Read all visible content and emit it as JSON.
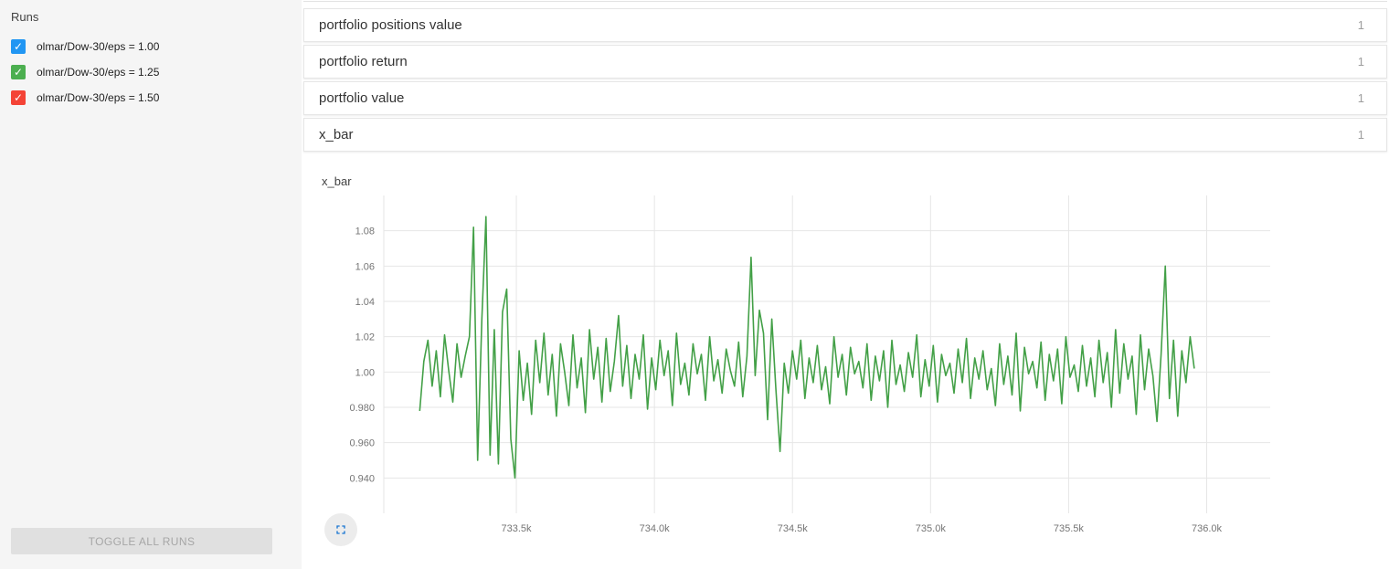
{
  "sidebar": {
    "title": "Runs",
    "runs": [
      {
        "label": "olmar/Dow-30/eps = 1.00",
        "color": "#2196f3",
        "checked": true
      },
      {
        "label": "olmar/Dow-30/eps = 1.25",
        "color": "#4caf50",
        "checked": true
      },
      {
        "label": "olmar/Dow-30/eps = 1.50",
        "color": "#f44336",
        "checked": true
      }
    ],
    "toggle_all_label": "TOGGLE ALL RUNS"
  },
  "panels": [
    {
      "label": "portfolio positions value",
      "count": "1",
      "expanded": false
    },
    {
      "label": "portfolio return",
      "count": "1",
      "expanded": false
    },
    {
      "label": "portfolio value",
      "count": "1",
      "expanded": false
    },
    {
      "label": "x_bar",
      "count": "1",
      "expanded": true
    }
  ],
  "expanded_chart": {
    "title": "x_bar"
  },
  "accent": {
    "expand_icon_color": "#1976d2"
  },
  "chart_data": {
    "type": "line",
    "title": "x_bar",
    "xlabel": "",
    "ylabel": "",
    "grid": true,
    "legend": "none",
    "xlim": [
      733020,
      736230
    ],
    "ylim": [
      0.92,
      1.1
    ],
    "x_ticks": [
      {
        "value": 733500,
        "label": "733.5k"
      },
      {
        "value": 734000,
        "label": "734.0k"
      },
      {
        "value": 734500,
        "label": "734.5k"
      },
      {
        "value": 735000,
        "label": "735.0k"
      },
      {
        "value": 735500,
        "label": "735.5k"
      },
      {
        "value": 736000,
        "label": "736.0k"
      }
    ],
    "y_ticks": [
      {
        "value": 0.94,
        "label": "0.940"
      },
      {
        "value": 0.96,
        "label": "0.960"
      },
      {
        "value": 0.98,
        "label": "0.980"
      },
      {
        "value": 1.0,
        "label": "1.00"
      },
      {
        "value": 1.02,
        "label": "1.02"
      },
      {
        "value": 1.04,
        "label": "1.04"
      },
      {
        "value": 1.06,
        "label": "1.06"
      },
      {
        "value": 1.08,
        "label": "1.08"
      }
    ],
    "series": [
      {
        "name": "olmar/Dow-30/eps = 1.25",
        "color": "#43a047",
        "x_start": 733150,
        "x_step": 15,
        "values": [
          0.978,
          1.006,
          1.018,
          0.992,
          1.012,
          0.986,
          1.021,
          1.001,
          0.983,
          1.016,
          0.997,
          1.009,
          1.02,
          1.082,
          0.95,
          1.03,
          1.088,
          0.953,
          1.024,
          0.948,
          1.034,
          1.047,
          0.962,
          0.94,
          1.012,
          0.984,
          1.005,
          0.976,
          1.018,
          0.994,
          1.022,
          0.987,
          1.01,
          0.975,
          1.016,
          1.0,
          0.981,
          1.021,
          0.991,
          1.008,
          0.977,
          1.024,
          0.996,
          1.014,
          0.983,
          1.019,
          0.989,
          1.006,
          1.032,
          0.992,
          1.015,
          0.985,
          1.01,
          0.996,
          1.021,
          0.979,
          1.008,
          0.99,
          1.018,
          0.998,
          1.012,
          0.981,
          1.022,
          0.993,
          1.005,
          0.987,
          1.016,
          0.999,
          1.01,
          0.984,
          1.02,
          0.995,
          1.007,
          0.988,
          1.013,
          1.001,
          0.992,
          1.017,
          0.986,
          1.009,
          1.065,
          0.998,
          1.035,
          1.022,
          0.973,
          1.03,
          0.99,
          0.955,
          1.005,
          0.988,
          1.012,
          0.996,
          1.018,
          0.985,
          1.008,
          0.994,
          1.015,
          0.99,
          1.003,
          0.982,
          1.02,
          0.997,
          1.01,
          0.987,
          1.014,
          0.999,
          1.006,
          0.991,
          1.016,
          0.984,
          1.009,
          0.995,
          1.012,
          0.98,
          1.018,
          0.993,
          1.004,
          0.989,
          1.011,
          0.997,
          1.021,
          0.986,
          1.007,
          0.992,
          1.015,
          0.983,
          1.01,
          0.998,
          1.005,
          0.988,
          1.013,
          0.994,
          1.019,
          0.985,
          1.008,
          0.996,
          1.012,
          0.99,
          1.002,
          0.981,
          1.016,
          0.993,
          1.009,
          0.987,
          1.022,
          0.978,
          1.014,
          0.999,
          1.006,
          0.991,
          1.017,
          0.984,
          1.01,
          0.995,
          1.013,
          0.982,
          1.02,
          0.997,
          1.004,
          0.989,
          1.015,
          0.992,
          1.008,
          0.986,
          1.018,
          0.994,
          1.011,
          0.98,
          1.024,
          0.988,
          1.016,
          0.996,
          1.009,
          0.976,
          1.021,
          0.99,
          1.013,
          0.998,
          0.972,
          1.01,
          1.06,
          0.985,
          1.018,
          0.975,
          1.012,
          0.994,
          1.02,
          1.002
        ]
      }
    ]
  }
}
